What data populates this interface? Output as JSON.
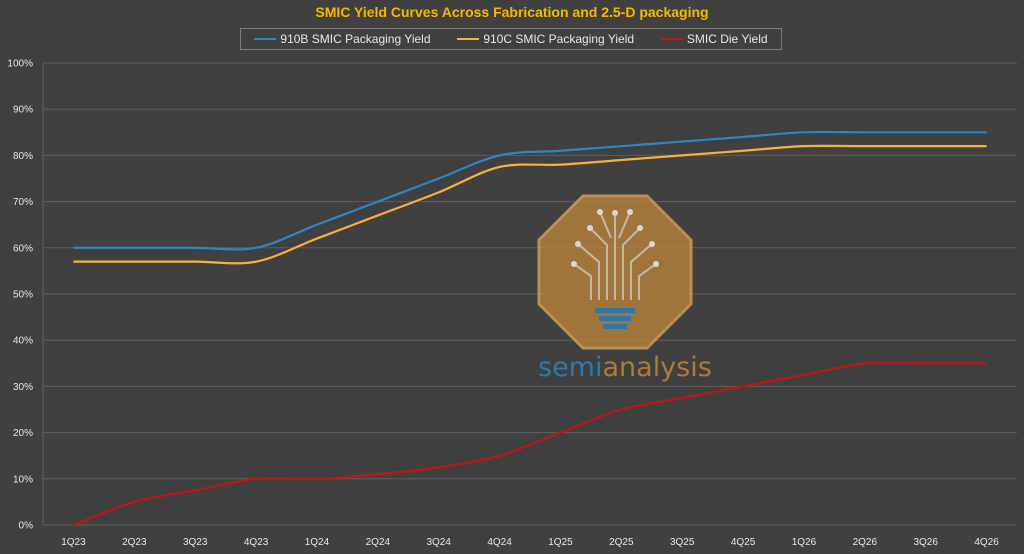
{
  "chart_data": {
    "type": "line",
    "title": "SMIC Yield Curves Across Fabrication and 2.5-D packaging",
    "categories": [
      "1Q23",
      "2Q23",
      "3Q23",
      "4Q23",
      "1Q24",
      "2Q24",
      "3Q24",
      "4Q24",
      "1Q25",
      "2Q25",
      "3Q25",
      "4Q25",
      "1Q26",
      "2Q26",
      "3Q26",
      "4Q26"
    ],
    "ylim": [
      0,
      100
    ],
    "yticks": [
      0,
      10,
      20,
      30,
      40,
      50,
      60,
      70,
      80,
      90,
      100
    ],
    "ytick_labels": [
      "0%",
      "10%",
      "20%",
      "30%",
      "40%",
      "50%",
      "60%",
      "70%",
      "80%",
      "90%",
      "100%"
    ],
    "grid": true,
    "legend_position": "top",
    "xlabel": "",
    "ylabel": "",
    "series": [
      {
        "name": "910B SMIC Packaging Yield",
        "color": "#2e86c1",
        "values": [
          60,
          60,
          60,
          60,
          65,
          70,
          75,
          80,
          81,
          82,
          83,
          84,
          85,
          85,
          85,
          85
        ]
      },
      {
        "name": "910C SMIC Packaging Yield",
        "color": "#f5b041",
        "values": [
          57,
          57,
          57,
          57,
          62,
          67,
          72,
          77.5,
          78,
          79,
          80,
          81,
          82,
          82,
          82,
          82
        ]
      },
      {
        "name": "SMIC Die Yield",
        "color": "#c0161b",
        "values": [
          0,
          5,
          7.5,
          10,
          10,
          11,
          12.5,
          15,
          20,
          25,
          27.5,
          30,
          32.5,
          35,
          35,
          35
        ]
      }
    ]
  },
  "watermark": {
    "text_a": "semi",
    "text_b": "analysis",
    "color_a": "#2e86c1",
    "color_b": "#c8893a"
  }
}
